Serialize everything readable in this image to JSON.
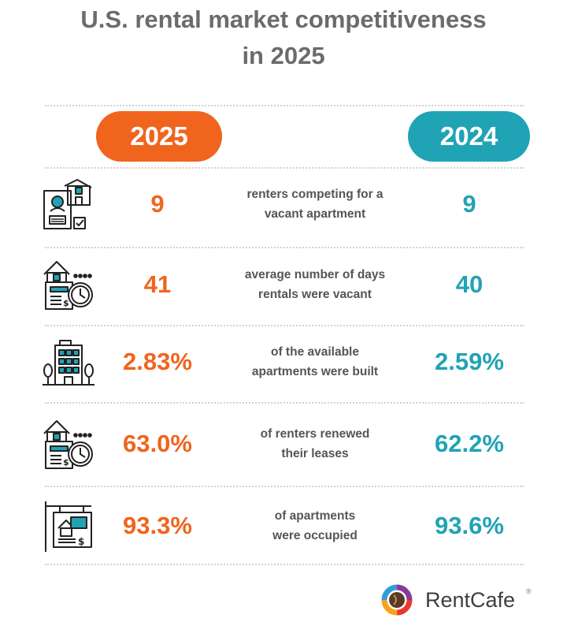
{
  "title": {
    "line1": "U.S. rental market competitiveness",
    "line2": "in 2025"
  },
  "columns": {
    "current_year": "2025",
    "previous_year": "2024"
  },
  "colors": {
    "accent_2025": "#f0641e",
    "accent_2024": "#20a3b4",
    "title_gray": "#6b6b6b",
    "text_gray": "#555555"
  },
  "rows": [
    {
      "icon": "renter-profile-house-icon",
      "value_2025": "9",
      "value_2024": "9",
      "description_line1": "renters competing for a",
      "description_line2": "vacant apartment"
    },
    {
      "icon": "house-document-clock-icon",
      "value_2025": "41",
      "value_2024": "40",
      "description_line1": "average number of days",
      "description_line2": "rentals were vacant"
    },
    {
      "icon": "apartment-building-trees-icon",
      "value_2025": "2.83%",
      "value_2024": "2.59%",
      "description_line1": "of the available",
      "description_line2": "apartments were built"
    },
    {
      "icon": "house-document-clock-icon",
      "value_2025": "63.0%",
      "value_2024": "62.2%",
      "description_line1": "of renters renewed",
      "description_line2": "their leases"
    },
    {
      "icon": "for-rent-sign-icon",
      "value_2025": "93.3%",
      "value_2024": "93.6%",
      "description_line1": "of apartments",
      "description_line2": "were occupied"
    }
  ],
  "brand": {
    "name": "RentCafe",
    "registered_mark": "®"
  }
}
